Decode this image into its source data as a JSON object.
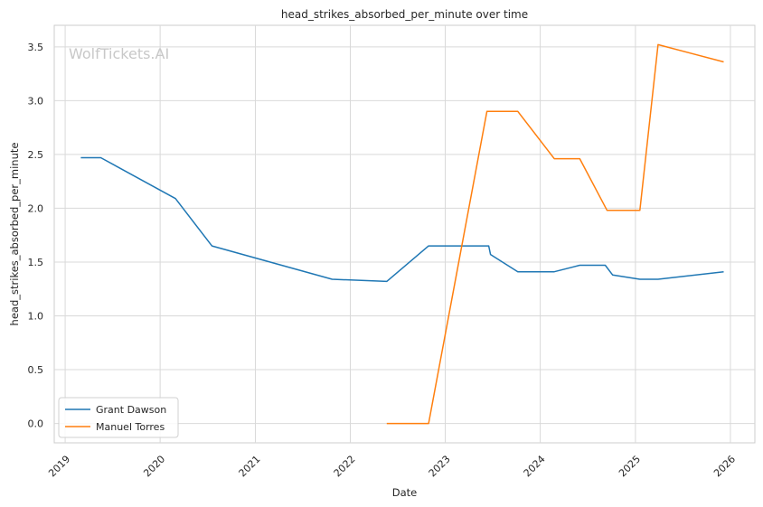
{
  "chart_data": {
    "type": "line",
    "title": "head_strikes_absorbed_per_minute over time",
    "xlabel": "Date",
    "ylabel": "head_strikes_absorbed_per_minute",
    "watermark": "WolfTickets.AI",
    "xlim": [
      "2018-11-20",
      "2026-04-05"
    ],
    "ylim": [
      -0.18,
      3.7
    ],
    "x_ticks": [
      "2019",
      "2020",
      "2021",
      "2022",
      "2023",
      "2024",
      "2025",
      "2026"
    ],
    "y_ticks": [
      "0.0",
      "0.5",
      "1.0",
      "1.5",
      "2.0",
      "2.5",
      "3.0",
      "3.5"
    ],
    "y_tick_values": [
      0.0,
      0.5,
      1.0,
      1.5,
      2.0,
      2.5,
      3.0,
      3.5
    ],
    "grid": true,
    "legend_position": "lower-left",
    "series": [
      {
        "name": "Grant Dawson",
        "color": "#1f77b4",
        "x": [
          "2019-03-02",
          "2019-05-18",
          "2020-02-29",
          "2020-07-18",
          "2021-10-23",
          "2022-05-21",
          "2022-10-29",
          "2023-06-17",
          "2023-06-24",
          "2023-10-07",
          "2024-02-24",
          "2024-06-01",
          "2024-09-07",
          "2024-10-05",
          "2025-01-18",
          "2025-03-29",
          "2025-12-06"
        ],
        "values": [
          2.47,
          2.47,
          2.09,
          1.65,
          1.34,
          1.32,
          1.65,
          1.65,
          1.57,
          1.41,
          1.41,
          1.47,
          1.47,
          1.38,
          1.34,
          1.34,
          1.41
        ]
      },
      {
        "name": "Manuel Torres",
        "color": "#ff7f0e",
        "x": [
          "2022-05-21",
          "2022-10-29",
          "2023-06-10",
          "2023-10-07",
          "2024-02-24",
          "2024-06-01",
          "2024-09-14",
          "2025-01-18",
          "2025-03-29",
          "2025-12-06"
        ],
        "values": [
          0.0,
          0.0,
          2.9,
          2.9,
          2.46,
          2.46,
          1.98,
          1.98,
          3.52,
          3.36
        ]
      }
    ]
  }
}
